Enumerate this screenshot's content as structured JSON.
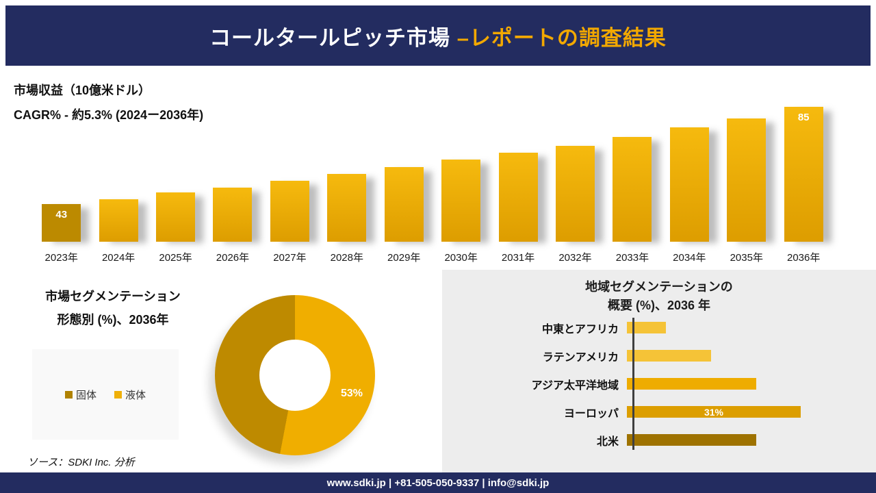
{
  "header": {
    "title_main": "コールタールピッチ市場 ",
    "title_accent": "–レポートの調査結果"
  },
  "revenue": {
    "metric_label": "市場収益（10億米ドル）",
    "cagr_label": "CAGR% - 約5.3% (2024ー2036年)"
  },
  "chart_data": [
    {
      "id": "revenue_by_year",
      "type": "bar",
      "title": "市場収益（10億米ドル）",
      "subtitle": "CAGR% - 約5.3% (2024ー2036年)",
      "categories": [
        "2023年",
        "2024年",
        "2025年",
        "2026年",
        "2027年",
        "2028年",
        "2029年",
        "2030年",
        "2031年",
        "2032年",
        "2033年",
        "2034年",
        "2035年",
        "2036年"
      ],
      "values": [
        43,
        45,
        48,
        50,
        53,
        56,
        59,
        62,
        65,
        68,
        72,
        76,
        80,
        85
      ],
      "value_labels_shown": {
        "0": "43",
        "13": "85"
      },
      "ylabel": "市場収益（10億米ドル）",
      "grid": false,
      "bar_color_top": "#f6ba0e",
      "bar_color_bottom": "#dd9d00",
      "first_bar_color": "#bc8a00"
    },
    {
      "id": "form_segmentation",
      "type": "pie",
      "title": "市場セグメンテーション 形態別 (%)、2036年",
      "labels": [
        "固体",
        "液体"
      ],
      "values": [
        47,
        53
      ],
      "colors": [
        "#be8a00",
        "#f0ae00"
      ],
      "shown_label": "53%",
      "legend_position": "left"
    },
    {
      "id": "regional_segmentation",
      "type": "bar",
      "orientation": "horizontal",
      "title": "地域セグメンテーションの概要 (%)、2036 年",
      "categories": [
        "中東とアフリカ",
        "ラテンアメリカ",
        "アジア太平洋地域",
        "ヨーロッパ",
        "北米"
      ],
      "values": [
        7,
        15,
        23,
        31,
        23
      ],
      "colors": [
        "#f5c337",
        "#f5c337",
        "#eeac00",
        "#dc9e00",
        "#9e7200"
      ],
      "value_labels_shown": {
        "3": "31%"
      },
      "xlim": [
        0,
        35
      ],
      "grid": false
    }
  ],
  "segmentation": {
    "title_line1": "市場セグメンテーション",
    "title_line2": "形態別 (%)、2036年",
    "legend": [
      {
        "label": "固体",
        "color": "#b08200"
      },
      {
        "label": "液体",
        "color": "#efb009"
      }
    ],
    "donut_label": "53%",
    "source": "ソース：SDKI Inc. 分析"
  },
  "region": {
    "title_line1": "地域セグメンテーションの",
    "title_line2": "概要 (%)、2036 年"
  },
  "footer": {
    "text": "www.sdki.jp | +81-505-050-9337 | info@sdki.jp"
  },
  "colors": {
    "navy": "#232c60",
    "accent_gold": "#f2a800",
    "panel_gray": "#ededed"
  }
}
